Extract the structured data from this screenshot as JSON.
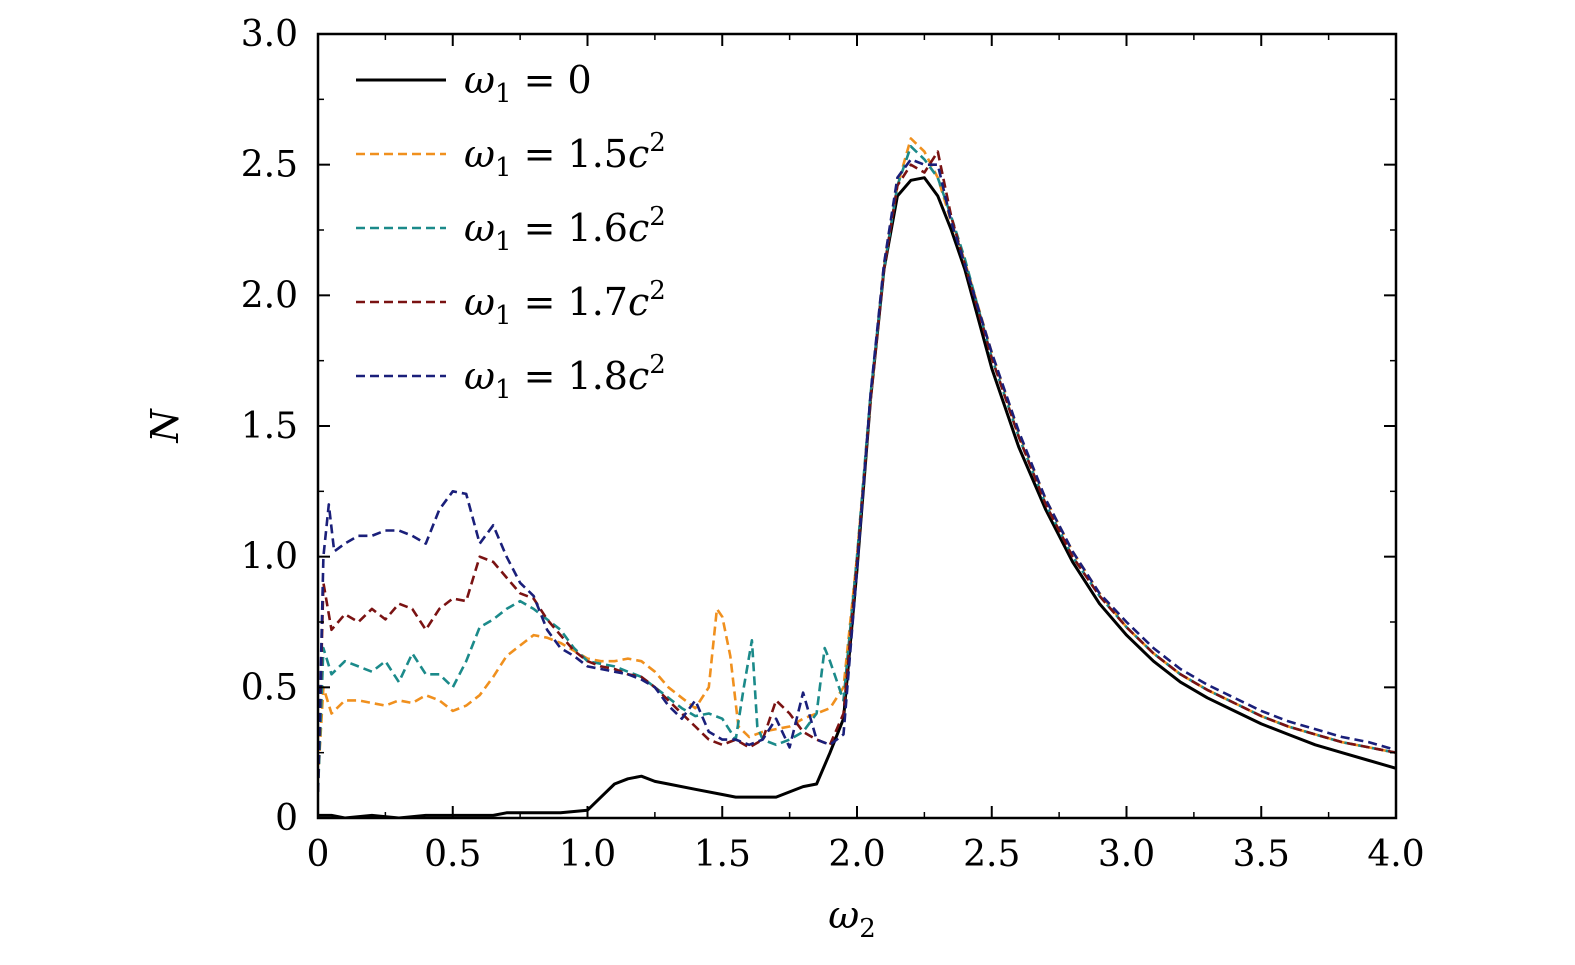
{
  "chart_data": {
    "type": "line",
    "title": "",
    "xlabel": "ω",
    "xlabel_sub": "2",
    "ylabel": "N",
    "xlim": [
      0,
      4
    ],
    "ylim": [
      0,
      3
    ],
    "xticks": [
      0,
      0.5,
      1.0,
      1.5,
      2.0,
      2.5,
      3.0,
      3.5,
      4.0
    ],
    "xtick_labels": [
      "0",
      "0.5",
      "1.0",
      "1.5",
      "2.0",
      "2.5",
      "3.0",
      "3.5",
      "4.0"
    ],
    "yticks": [
      0,
      0.5,
      1.0,
      1.5,
      2.0,
      2.5,
      3.0
    ],
    "ytick_labels": [
      "0",
      "0.5",
      "1.0",
      "1.5",
      "2.0",
      "2.5",
      "3.0"
    ],
    "grid": false,
    "legend_position": "top-left",
    "series": [
      {
        "name": "ω1 = 0",
        "legend_sym": "ω",
        "legend_sub": "1",
        "legend_rhs": " = 0",
        "legend_sup": "",
        "color": "#000000",
        "dash": "solid",
        "x": [
          0,
          0.05,
          0.1,
          0.2,
          0.3,
          0.4,
          0.5,
          0.6,
          0.65,
          0.7,
          0.8,
          0.9,
          1.0,
          1.02,
          1.05,
          1.1,
          1.15,
          1.2,
          1.25,
          1.3,
          1.4,
          1.5,
          1.55,
          1.6,
          1.65,
          1.7,
          1.75,
          1.8,
          1.85,
          1.9,
          1.95,
          2.0,
          2.05,
          2.1,
          2.15,
          2.2,
          2.25,
          2.3,
          2.35,
          2.4,
          2.5,
          2.6,
          2.7,
          2.8,
          2.9,
          3.0,
          3.1,
          3.2,
          3.3,
          3.4,
          3.5,
          3.6,
          3.7,
          3.8,
          3.9,
          4.0
        ],
        "y": [
          0.01,
          0.01,
          0.0,
          0.01,
          0.0,
          0.01,
          0.01,
          0.01,
          0.01,
          0.02,
          0.02,
          0.02,
          0.03,
          0.05,
          0.08,
          0.13,
          0.15,
          0.16,
          0.14,
          0.13,
          0.11,
          0.09,
          0.08,
          0.08,
          0.08,
          0.08,
          0.1,
          0.12,
          0.13,
          0.25,
          0.38,
          0.95,
          1.6,
          2.1,
          2.38,
          2.44,
          2.45,
          2.38,
          2.25,
          2.1,
          1.72,
          1.42,
          1.18,
          0.98,
          0.82,
          0.7,
          0.6,
          0.52,
          0.46,
          0.41,
          0.36,
          0.32,
          0.28,
          0.25,
          0.22,
          0.19
        ]
      },
      {
        "name": "ω1 = 1.5c2",
        "legend_sym": "ω",
        "legend_sub": "1",
        "legend_rhs": " = 1.5",
        "legend_sup": "2",
        "color": "#f0901e",
        "dash": "dashed",
        "x": [
          0,
          0.02,
          0.05,
          0.1,
          0.15,
          0.2,
          0.25,
          0.3,
          0.35,
          0.4,
          0.45,
          0.5,
          0.55,
          0.6,
          0.65,
          0.7,
          0.75,
          0.8,
          0.85,
          0.9,
          0.95,
          1.0,
          1.05,
          1.1,
          1.15,
          1.2,
          1.25,
          1.3,
          1.35,
          1.4,
          1.45,
          1.48,
          1.5,
          1.53,
          1.56,
          1.6,
          1.65,
          1.7,
          1.75,
          1.8,
          1.85,
          1.9,
          1.95,
          2.0,
          2.05,
          2.1,
          2.15,
          2.2,
          2.25,
          2.3,
          2.35,
          2.4,
          2.5,
          2.6,
          2.7,
          2.8,
          2.9,
          3.0,
          3.1,
          3.2,
          3.3,
          3.4,
          3.5,
          3.6,
          3.7,
          3.8,
          3.9,
          4.0
        ],
        "y": [
          0.15,
          0.5,
          0.4,
          0.45,
          0.45,
          0.44,
          0.43,
          0.45,
          0.44,
          0.47,
          0.45,
          0.41,
          0.43,
          0.47,
          0.54,
          0.62,
          0.66,
          0.7,
          0.69,
          0.67,
          0.64,
          0.61,
          0.6,
          0.6,
          0.61,
          0.6,
          0.56,
          0.5,
          0.46,
          0.42,
          0.5,
          0.8,
          0.77,
          0.62,
          0.35,
          0.31,
          0.33,
          0.34,
          0.35,
          0.38,
          0.4,
          0.42,
          0.5,
          1.0,
          1.6,
          2.12,
          2.42,
          2.6,
          2.55,
          2.45,
          2.28,
          2.13,
          1.78,
          1.47,
          1.22,
          1.02,
          0.86,
          0.73,
          0.63,
          0.55,
          0.49,
          0.44,
          0.39,
          0.35,
          0.32,
          0.29,
          0.27,
          0.25
        ]
      },
      {
        "name": "ω1 = 1.6c2",
        "legend_sym": "ω",
        "legend_sub": "1",
        "legend_rhs": " = 1.6",
        "legend_sup": "2",
        "color": "#1b8a8a",
        "dash": "dashed",
        "x": [
          0,
          0.02,
          0.05,
          0.1,
          0.15,
          0.2,
          0.25,
          0.3,
          0.35,
          0.4,
          0.45,
          0.5,
          0.55,
          0.6,
          0.65,
          0.7,
          0.75,
          0.8,
          0.85,
          0.9,
          0.95,
          1.0,
          1.05,
          1.1,
          1.15,
          1.2,
          1.25,
          1.3,
          1.35,
          1.4,
          1.45,
          1.5,
          1.55,
          1.58,
          1.61,
          1.63,
          1.65,
          1.7,
          1.75,
          1.8,
          1.85,
          1.88,
          1.9,
          1.95,
          2.0,
          2.05,
          2.1,
          2.15,
          2.2,
          2.25,
          2.3,
          2.35,
          2.4,
          2.5,
          2.6,
          2.7,
          2.8,
          2.9,
          3.0,
          3.1,
          3.2,
          3.3,
          3.4,
          3.5,
          3.6,
          3.7,
          3.8,
          3.9,
          4.0
        ],
        "y": [
          0.1,
          0.65,
          0.55,
          0.6,
          0.58,
          0.56,
          0.6,
          0.52,
          0.63,
          0.55,
          0.55,
          0.5,
          0.6,
          0.73,
          0.76,
          0.8,
          0.83,
          0.8,
          0.76,
          0.72,
          0.65,
          0.6,
          0.59,
          0.58,
          0.56,
          0.54,
          0.5,
          0.46,
          0.42,
          0.39,
          0.4,
          0.38,
          0.3,
          0.5,
          0.68,
          0.35,
          0.3,
          0.28,
          0.3,
          0.33,
          0.4,
          0.65,
          0.6,
          0.45,
          1.0,
          1.62,
          2.1,
          2.42,
          2.57,
          2.52,
          2.45,
          2.3,
          2.14,
          1.76,
          1.46,
          1.2,
          1.0,
          0.85,
          0.73,
          0.63,
          0.55,
          0.49,
          0.44,
          0.39,
          0.35,
          0.32,
          0.29,
          0.27,
          0.25
        ]
      },
      {
        "name": "ω1 = 1.7c2",
        "legend_sym": "ω",
        "legend_sub": "1",
        "legend_rhs": " = 1.7",
        "legend_sup": "2",
        "color": "#7a1212",
        "dash": "dashed",
        "x": [
          0,
          0.02,
          0.05,
          0.1,
          0.15,
          0.2,
          0.25,
          0.3,
          0.35,
          0.4,
          0.45,
          0.5,
          0.55,
          0.6,
          0.65,
          0.7,
          0.75,
          0.8,
          0.85,
          0.9,
          0.95,
          1.0,
          1.05,
          1.1,
          1.15,
          1.2,
          1.25,
          1.3,
          1.35,
          1.4,
          1.45,
          1.5,
          1.55,
          1.6,
          1.65,
          1.7,
          1.75,
          1.8,
          1.85,
          1.9,
          1.95,
          2.0,
          2.05,
          2.1,
          2.15,
          2.2,
          2.25,
          2.3,
          2.35,
          2.4,
          2.5,
          2.6,
          2.7,
          2.8,
          2.9,
          3.0,
          3.1,
          3.2,
          3.3,
          3.4,
          3.5,
          3.6,
          3.7,
          3.8,
          3.9,
          4.0
        ],
        "y": [
          0.1,
          0.9,
          0.72,
          0.78,
          0.75,
          0.8,
          0.76,
          0.82,
          0.8,
          0.72,
          0.8,
          0.84,
          0.83,
          1.0,
          0.98,
          0.92,
          0.86,
          0.84,
          0.76,
          0.7,
          0.64,
          0.6,
          0.58,
          0.57,
          0.55,
          0.54,
          0.5,
          0.45,
          0.4,
          0.35,
          0.3,
          0.28,
          0.3,
          0.27,
          0.3,
          0.45,
          0.4,
          0.33,
          0.3,
          0.28,
          0.4,
          0.98,
          1.6,
          2.1,
          2.42,
          2.5,
          2.47,
          2.55,
          2.3,
          2.12,
          1.76,
          1.46,
          1.2,
          1.0,
          0.85,
          0.73,
          0.63,
          0.55,
          0.49,
          0.44,
          0.39,
          0.35,
          0.32,
          0.29,
          0.27,
          0.25
        ]
      },
      {
        "name": "ω1 = 1.8c2",
        "legend_sym": "ω",
        "legend_sub": "1",
        "legend_rhs": " = 1.8",
        "legend_sup": "2",
        "color": "#1a1f7a",
        "dash": "dashed",
        "x": [
          0,
          0.02,
          0.04,
          0.06,
          0.1,
          0.15,
          0.2,
          0.25,
          0.3,
          0.35,
          0.4,
          0.45,
          0.5,
          0.55,
          0.6,
          0.65,
          0.7,
          0.75,
          0.8,
          0.85,
          0.9,
          0.95,
          1.0,
          1.05,
          1.1,
          1.15,
          1.2,
          1.25,
          1.3,
          1.35,
          1.4,
          1.45,
          1.5,
          1.55,
          1.6,
          1.65,
          1.7,
          1.75,
          1.8,
          1.85,
          1.9,
          1.95,
          2.0,
          2.05,
          2.1,
          2.15,
          2.2,
          2.25,
          2.3,
          2.35,
          2.4,
          2.5,
          2.6,
          2.7,
          2.8,
          2.9,
          3.0,
          3.1,
          3.2,
          3.3,
          3.4,
          3.5,
          3.6,
          3.7,
          3.8,
          3.9,
          4.0
        ],
        "y": [
          0.1,
          1.0,
          1.2,
          1.02,
          1.05,
          1.08,
          1.08,
          1.1,
          1.1,
          1.08,
          1.05,
          1.18,
          1.25,
          1.24,
          1.05,
          1.12,
          1.0,
          0.9,
          0.85,
          0.72,
          0.65,
          0.62,
          0.58,
          0.57,
          0.56,
          0.55,
          0.53,
          0.5,
          0.43,
          0.38,
          0.45,
          0.33,
          0.3,
          0.3,
          0.28,
          0.3,
          0.38,
          0.27,
          0.48,
          0.3,
          0.28,
          0.32,
          0.95,
          1.62,
          2.12,
          2.45,
          2.52,
          2.5,
          2.5,
          2.28,
          2.12,
          1.78,
          1.48,
          1.22,
          1.02,
          0.86,
          0.75,
          0.65,
          0.57,
          0.51,
          0.46,
          0.41,
          0.37,
          0.34,
          0.31,
          0.29,
          0.26
        ]
      }
    ]
  }
}
